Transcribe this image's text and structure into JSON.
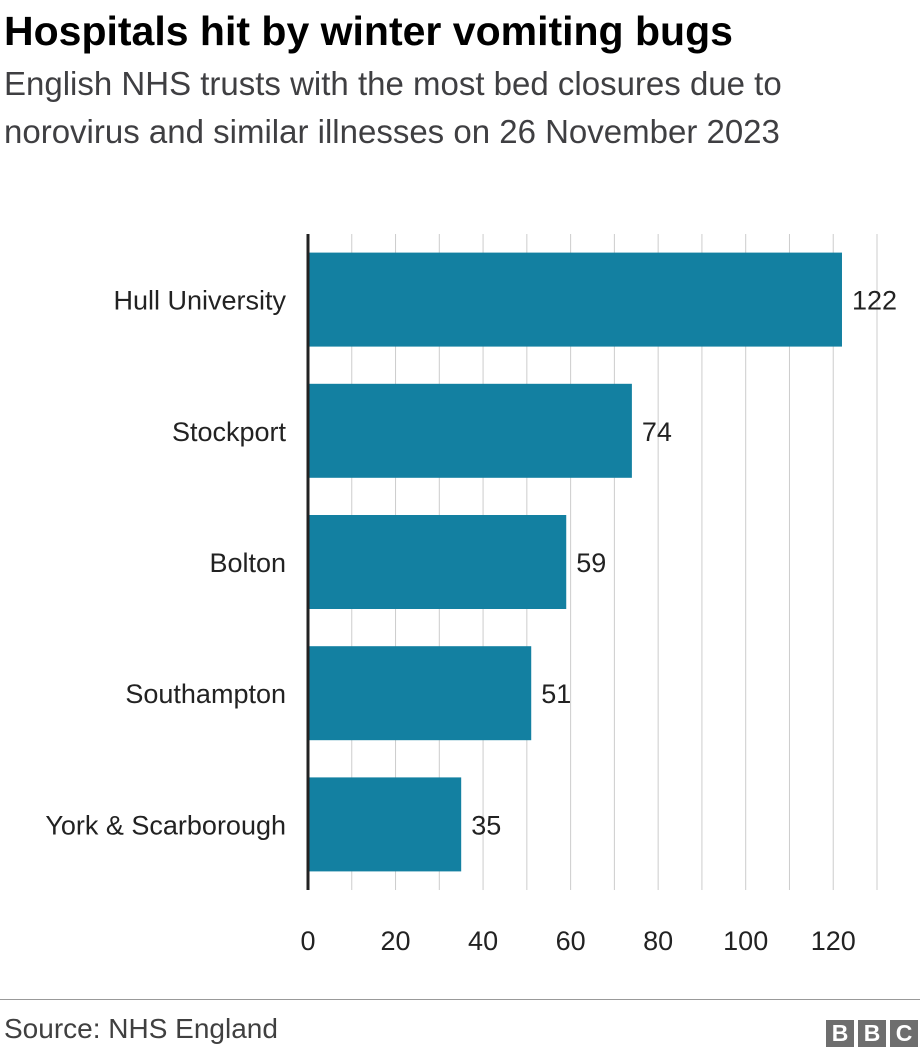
{
  "header": {
    "title": "Hospitals hit by winter vomiting bugs",
    "subtitle": "English NHS trusts with the most bed closures due to norovirus and similar illnesses on 26 November 2023"
  },
  "footer": {
    "source": "Source: NHS England",
    "logo_letters": [
      "B",
      "B",
      "C"
    ]
  },
  "colors": {
    "bar": "#1380a1",
    "grid": "#cccccc",
    "axis": "#222222"
  },
  "chart_data": {
    "type": "bar",
    "orientation": "horizontal",
    "title": "Hospitals hit by winter vomiting bugs",
    "subtitle": "English NHS trusts with the most bed closures due to norovirus and similar illnesses on 26 November 2023",
    "categories": [
      "Hull University",
      "Stockport",
      "Bolton",
      "Southampton",
      "York & Scarborough"
    ],
    "values": [
      122,
      74,
      59,
      51,
      35
    ],
    "data_labels": [
      "122",
      "74",
      "59",
      "51",
      "35"
    ],
    "xlim": [
      0,
      130
    ],
    "x_ticks": [
      0,
      20,
      40,
      60,
      80,
      100,
      120
    ],
    "x_tick_labels": [
      "0",
      "20",
      "40",
      "60",
      "80",
      "100",
      "120"
    ],
    "minor_grid_step": 10,
    "grid": true,
    "xlabel": "",
    "ylabel": ""
  }
}
